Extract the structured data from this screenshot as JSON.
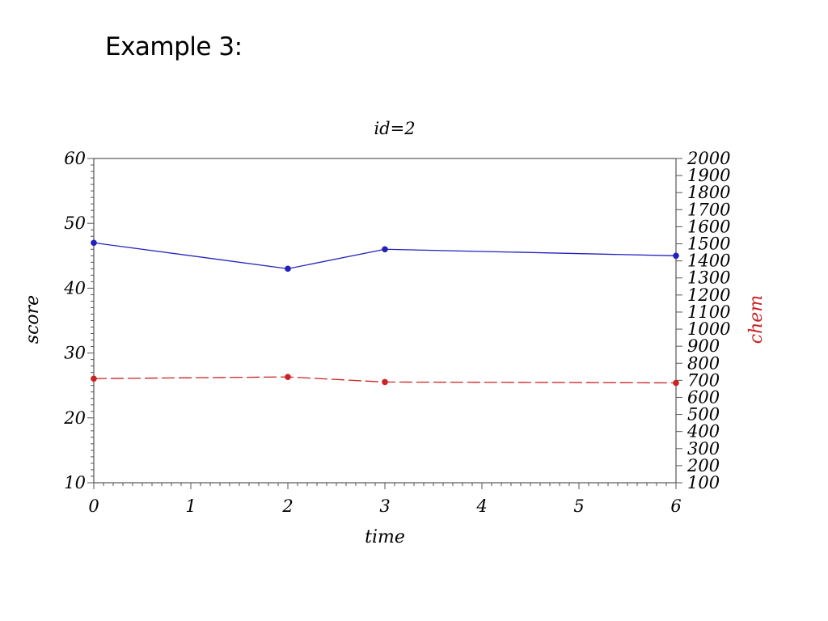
{
  "slide": {
    "heading": "Example 3:"
  },
  "chart_data": {
    "type": "line",
    "title": "id=2",
    "xlabel": "time",
    "ylabel": "score",
    "y2label": "chem",
    "xlim": [
      0,
      6
    ],
    "ylim": [
      10,
      60
    ],
    "y2lim": [
      100,
      2000
    ],
    "x_ticks": [
      0,
      1,
      2,
      3,
      4,
      5,
      6
    ],
    "y_ticks": [
      10,
      20,
      30,
      40,
      50,
      60
    ],
    "y2_ticks": [
      100,
      200,
      300,
      400,
      500,
      600,
      700,
      800,
      900,
      1000,
      1100,
      1200,
      1300,
      1400,
      1500,
      1600,
      1700,
      1800,
      1900,
      2000
    ],
    "grid": false,
    "legend": "none",
    "series": [
      {
        "axis": "left",
        "color": "#2222bb",
        "line_style": "solid",
        "x": [
          0,
          2,
          3,
          6
        ],
        "y": [
          47,
          43,
          46,
          45
        ]
      },
      {
        "axis": "right",
        "color": "#cc2222",
        "line_style": "dashed",
        "x": [
          0,
          2,
          3,
          6
        ],
        "y": [
          710,
          720,
          690,
          685
        ]
      }
    ]
  }
}
